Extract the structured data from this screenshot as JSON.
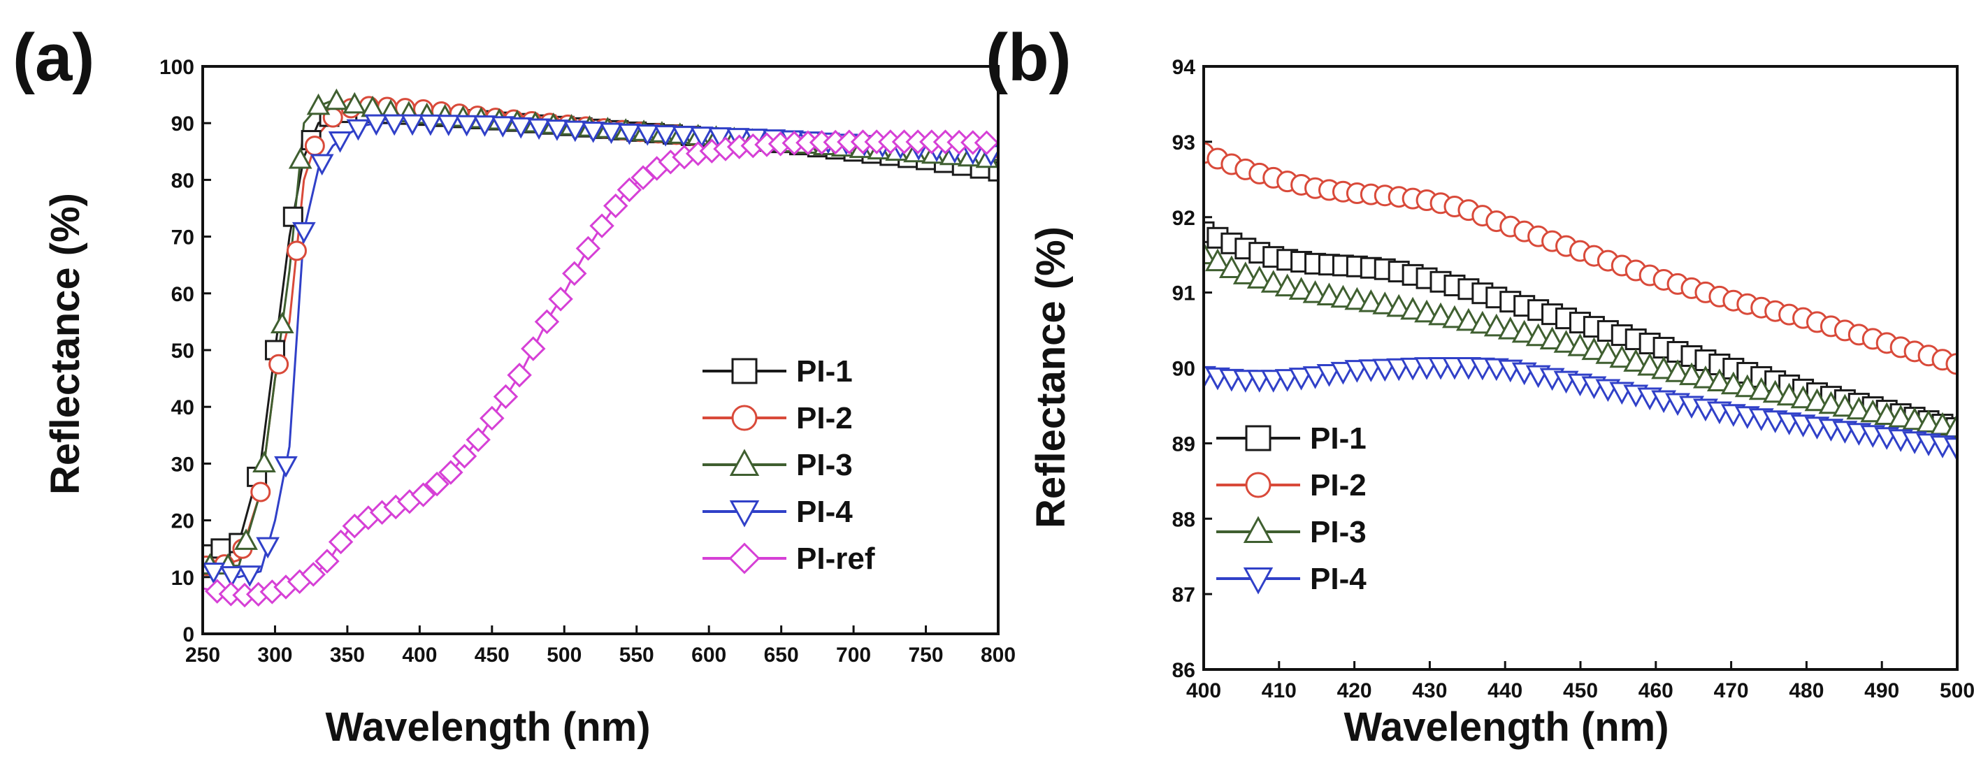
{
  "figure": {
    "panels": [
      "(a)",
      "(b)"
    ]
  },
  "chart_data": [
    {
      "type": "line",
      "panel": "(a)",
      "xlabel": "Wavelength (nm)",
      "ylabel": "Reflectance (%)",
      "xlim": [
        250,
        800
      ],
      "ylim": [
        0,
        100
      ],
      "xticks": [
        250,
        300,
        350,
        400,
        450,
        500,
        550,
        600,
        650,
        700,
        750,
        800
      ],
      "yticks": [
        0,
        10,
        20,
        30,
        40,
        50,
        60,
        70,
        80,
        90,
        100
      ],
      "grid": false,
      "legend_position": "bottom-right",
      "series": [
        {
          "name": "PI-1",
          "color": "#1a1a1a",
          "marker": "square",
          "x": [
            250,
            262,
            275,
            290,
            300,
            310,
            320,
            330,
            340,
            350,
            360,
            370,
            380,
            400,
            450,
            500,
            550,
            600,
            650,
            700,
            750,
            800
          ],
          "y": [
            14,
            15,
            16,
            30,
            50,
            70,
            84,
            90,
            91.5,
            91.8,
            91.8,
            91.7,
            91.6,
            91.3,
            90.5,
            89.5,
            88.5,
            87.5,
            86.5,
            85,
            83.5,
            81.5
          ]
        },
        {
          "name": "PI-2",
          "color": "#d94a3a",
          "marker": "circle",
          "x": [
            250,
            262,
            275,
            290,
            300,
            310,
            320,
            330,
            340,
            350,
            360,
            370,
            380,
            400,
            450,
            500,
            550,
            600,
            650,
            700,
            750,
            800
          ],
          "y": [
            12,
            12,
            13,
            25,
            45,
            55,
            80,
            88,
            91,
            92.5,
            93,
            93,
            92.8,
            92.5,
            91,
            89.8,
            88.5,
            87.5,
            86.8,
            86,
            85,
            84
          ]
        },
        {
          "name": "PI-3",
          "color": "#3f5f30",
          "marker": "triangle-up",
          "x": [
            250,
            262,
            275,
            290,
            300,
            310,
            320,
            330,
            340,
            350,
            360,
            370,
            380,
            400,
            450,
            500,
            550,
            600,
            650,
            700,
            750,
            800
          ],
          "y": [
            12,
            12,
            12,
            25,
            45,
            64,
            90,
            93,
            94,
            93.5,
            93,
            92.5,
            92,
            91.5,
            90.5,
            89.5,
            88.5,
            87.5,
            86.5,
            85.5,
            84.5,
            83.5
          ]
        },
        {
          "name": "PI-4",
          "color": "#3040c8",
          "marker": "triangle-down",
          "x": [
            250,
            262,
            275,
            290,
            300,
            310,
            320,
            330,
            340,
            350,
            360,
            370,
            380,
            400,
            450,
            500,
            550,
            600,
            650,
            700,
            750,
            800
          ],
          "y": [
            11,
            11,
            10,
            11,
            20,
            33,
            71,
            82,
            86,
            88,
            89.5,
            90,
            90,
            90,
            89.8,
            89,
            88.3,
            87.8,
            87.3,
            86.5,
            85.5,
            84.5
          ]
        },
        {
          "name": "PI-ref",
          "color": "#d640d6",
          "marker": "diamond",
          "x": [
            250,
            260,
            270,
            280,
            290,
            300,
            310,
            320,
            330,
            340,
            350,
            360,
            370,
            380,
            390,
            400,
            410,
            420,
            430,
            440,
            450,
            460,
            470,
            480,
            490,
            500,
            510,
            520,
            530,
            540,
            550,
            560,
            570,
            580,
            590,
            600,
            620,
            640,
            660,
            680,
            700,
            720,
            740,
            760,
            780,
            800
          ],
          "y": [
            8,
            7.5,
            7,
            6.8,
            7,
            7.5,
            8.5,
            9.5,
            11,
            14,
            18,
            20,
            21,
            22,
            23,
            24,
            26,
            28,
            31,
            34,
            38,
            42,
            46,
            51,
            56,
            60,
            65,
            69.5,
            73.5,
            77,
            79.5,
            81.5,
            82.8,
            83.8,
            84.5,
            85,
            85.8,
            86.2,
            86.5,
            86.6,
            86.7,
            86.7,
            86.7,
            86.7,
            86.6,
            86.5
          ]
        }
      ]
    },
    {
      "type": "line",
      "panel": "(b)",
      "xlabel": "Wavelength (nm)",
      "ylabel": "Reflectance (%)",
      "xlim": [
        400,
        500
      ],
      "ylim": [
        86,
        94
      ],
      "xticks": [
        400,
        410,
        420,
        430,
        440,
        450,
        460,
        470,
        480,
        490,
        500
      ],
      "yticks": [
        86,
        87,
        88,
        89,
        90,
        91,
        92,
        93,
        94
      ],
      "grid": false,
      "legend_position": "bottom-left",
      "series": [
        {
          "name": "PI-1",
          "color": "#1a1a1a",
          "marker": "square",
          "x": [
            400,
            405,
            410,
            415,
            420,
            425,
            430,
            435,
            440,
            450,
            460,
            470,
            480,
            490,
            500
          ],
          "y": [
            91.8,
            91.6,
            91.45,
            91.38,
            91.35,
            91.3,
            91.18,
            91.05,
            90.9,
            90.6,
            90.3,
            90.0,
            89.7,
            89.45,
            89.2
          ]
        },
        {
          "name": "PI-2",
          "color": "#d94a3a",
          "marker": "circle",
          "x": [
            400,
            405,
            410,
            415,
            420,
            425,
            430,
            435,
            440,
            450,
            460,
            470,
            480,
            490,
            500
          ],
          "y": [
            92.85,
            92.65,
            92.5,
            92.38,
            92.32,
            92.28,
            92.22,
            92.1,
            91.9,
            91.55,
            91.2,
            90.9,
            90.65,
            90.35,
            90.05
          ]
        },
        {
          "name": "PI-3",
          "color": "#3f5f30",
          "marker": "triangle-up",
          "x": [
            400,
            405,
            410,
            415,
            420,
            425,
            430,
            435,
            440,
            450,
            460,
            470,
            480,
            490,
            500
          ],
          "y": [
            91.5,
            91.25,
            91.1,
            90.98,
            90.9,
            90.82,
            90.72,
            90.62,
            90.52,
            90.28,
            90.0,
            89.78,
            89.58,
            89.38,
            89.2
          ]
        },
        {
          "name": "PI-4",
          "color": "#3040c8",
          "marker": "triangle-down",
          "x": [
            400,
            405,
            410,
            415,
            420,
            425,
            430,
            435,
            440,
            450,
            460,
            470,
            480,
            490,
            500
          ],
          "y": [
            89.9,
            89.85,
            89.85,
            89.9,
            89.98,
            90.0,
            90.02,
            90.02,
            90.0,
            89.8,
            89.6,
            89.4,
            89.25,
            89.1,
            88.95
          ]
        }
      ]
    }
  ]
}
